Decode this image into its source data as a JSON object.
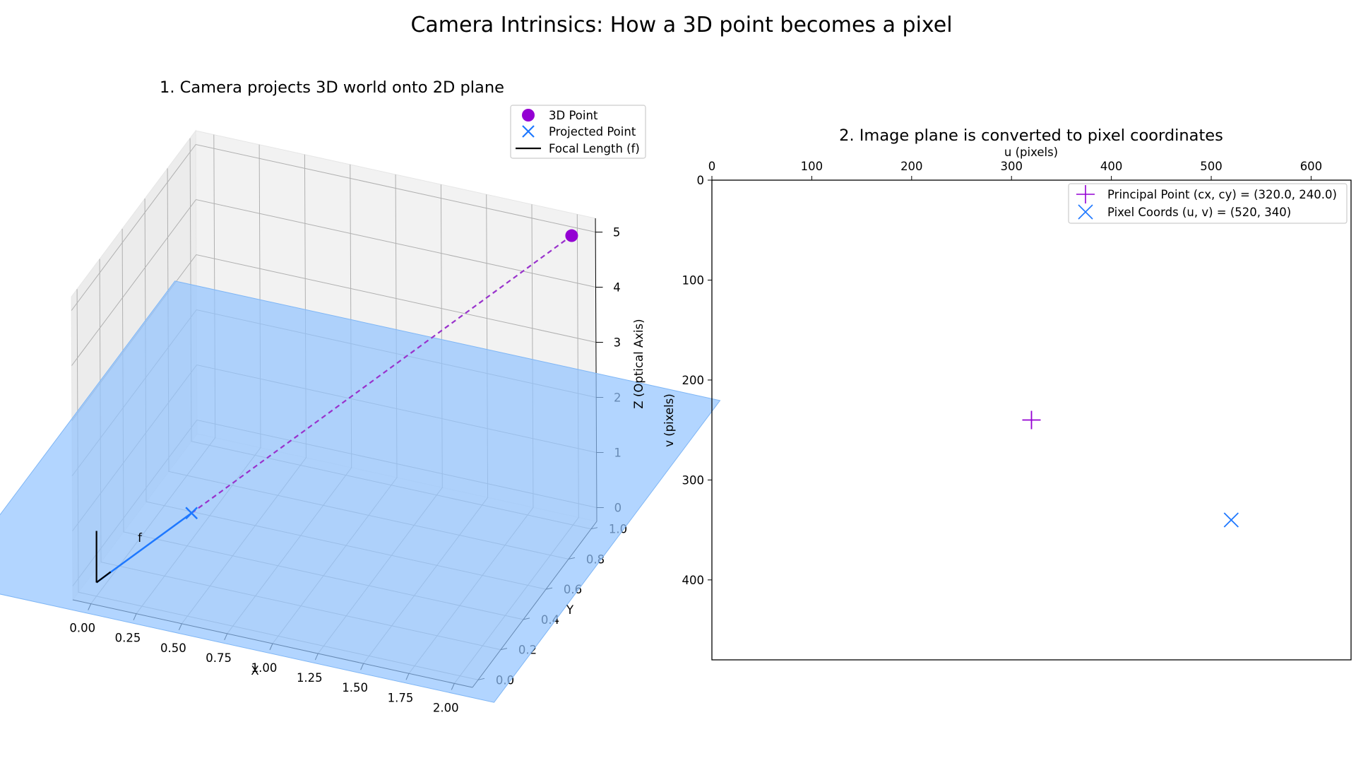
{
  "figure": {
    "title": "Camera Intrinsics: How a 3D point becomes a pixel"
  },
  "colors": {
    "point3d": "#9400d3",
    "projected": "#1e78ff",
    "focal": "#000000",
    "ray": "#9932cc",
    "image_plane": "#91c3ff",
    "principal": "#9400d3",
    "pixel": "#1e78ff",
    "pane": "#f2f2f2",
    "grid": "#b0b0b0"
  },
  "chart_data": [
    {
      "type": "scatter3d",
      "title": "1. Camera projects 3D world onto 2D plane",
      "xlabel": "X",
      "ylabel": "Y",
      "zlabel": "Z (Optical Axis)",
      "xlim": [
        -0.1,
        2.1
      ],
      "ylim": [
        -0.05,
        1.05
      ],
      "zlim": [
        -0.25,
        5.25
      ],
      "xticks": [
        "0.00",
        "0.25",
        "0.50",
        "0.75",
        "1.00",
        "1.25",
        "1.50",
        "1.75",
        "2.00"
      ],
      "yticks": [
        "0.0",
        "0.2",
        "0.4",
        "0.6",
        "0.8",
        "1.0"
      ],
      "zticks": [
        "0",
        "1",
        "2",
        "3",
        "4",
        "5"
      ],
      "grid": true,
      "legend_position": "top-right",
      "legend": [
        "3D Point",
        "Projected Point",
        "Focal Length (f)"
      ],
      "annotation": "f",
      "camera_origin": {
        "x": 0,
        "y": 0,
        "z": 0
      },
      "point_3d": {
        "x": 2.0,
        "y": 1.0,
        "z": 5.0
      },
      "projected_point": {
        "x": 0.4,
        "y": 0.2,
        "z": 1.0
      },
      "focal_length": 1.0,
      "image_plane": {
        "z": 1.0,
        "x_range": [
          -0.5,
          2.5
        ],
        "y_range": [
          -0.5,
          1.5
        ]
      }
    },
    {
      "type": "scatter",
      "title": "2. Image plane is converted to pixel coordinates",
      "xlabel": "u (pixels)",
      "ylabel": "v (pixels)",
      "xlim": [
        0,
        640
      ],
      "ylim": [
        480,
        0
      ],
      "xticks": [
        0,
        100,
        200,
        300,
        400,
        500,
        600
      ],
      "yticks": [
        0,
        100,
        200,
        300,
        400
      ],
      "x_axis_position": "top",
      "y_inverted": true,
      "grid": false,
      "legend_position": "top-right",
      "series": [
        {
          "name": "Principal Point (cx, cy) = (320.0, 240.0)",
          "marker": "plus",
          "x": 320.0,
          "y": 240.0
        },
        {
          "name": "Pixel Coords (u, v) = (520, 340)",
          "marker": "x",
          "x": 520,
          "y": 340
        }
      ]
    }
  ]
}
